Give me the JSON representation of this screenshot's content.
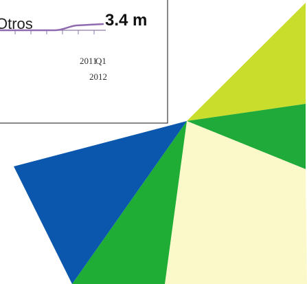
{
  "chart_data": [
    {
      "type": "pie",
      "title": "",
      "slices": [
        {
          "label": "",
          "color": "#c9dd2c"
        },
        {
          "label": "",
          "color": "#20aa3a"
        },
        {
          "label": "",
          "color": "#fbf9c9"
        },
        {
          "label": "",
          "color": "#1fad36"
        },
        {
          "label": "",
          "color": "#0a57ad"
        }
      ]
    },
    {
      "type": "line",
      "series": [
        {
          "name": "Otros",
          "color": "#8f6ab0",
          "end_label": "3.4 m"
        }
      ],
      "x_ticks": [
        {
          "top": "2011",
          "bottom": ""
        },
        {
          "top": "Q1",
          "bottom": "2012"
        }
      ]
    }
  ]
}
